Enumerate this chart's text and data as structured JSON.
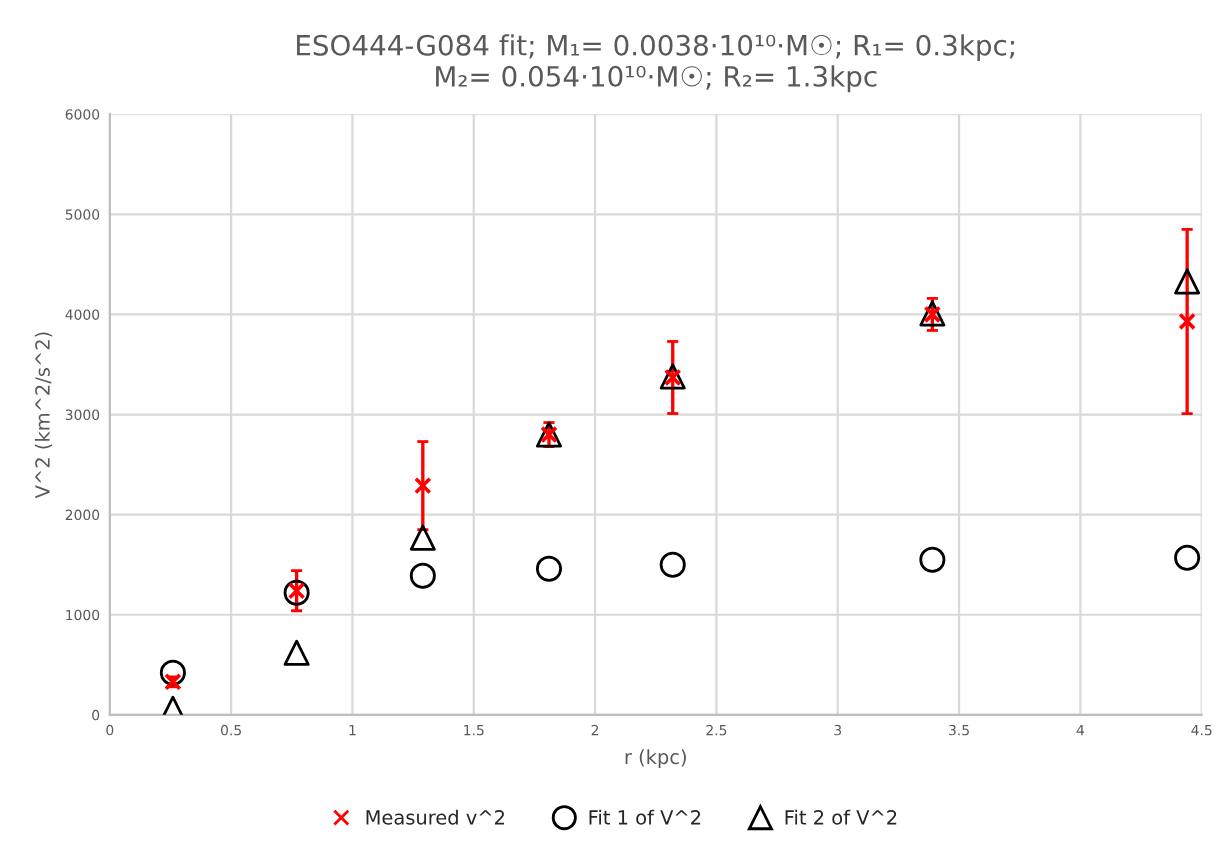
{
  "chart_data": {
    "type": "scatter",
    "title": "ESO444-G084 fit; M₁= 0.0038·10¹⁰·M☉; R₁= 0.3kpc;\nM₂= 0.054·10¹⁰·M☉; R₂= 1.3kpc",
    "xlabel": "r (kpc)",
    "ylabel": "V^2 (km^2/s^2)",
    "x": [
      0.26,
      0.77,
      1.29,
      1.81,
      2.32,
      3.39,
      4.44
    ],
    "series": [
      {
        "name": "Measured v^2",
        "color": "#ff0000",
        "marker": "cross",
        "values": [
          330,
          1240,
          2290,
          2800,
          3370,
          4000,
          3930
        ],
        "errors": [
          50,
          200,
          440,
          120,
          360,
          160,
          920
        ]
      },
      {
        "name": "Fit 1 of V^2",
        "color": "#000000",
        "marker": "circle",
        "values": [
          420,
          1220,
          1390,
          1460,
          1500,
          1550,
          1570
        ]
      },
      {
        "name": "Fit 2 of V^2",
        "color": "#000000",
        "marker": "triangle",
        "values": [
          60,
          620,
          1770,
          2800,
          3380,
          4010,
          4330
        ]
      }
    ],
    "xlim": [
      0,
      4.5
    ],
    "xticks": [
      0,
      0.5,
      1,
      1.5,
      2,
      2.5,
      3,
      3.5,
      4,
      4.5
    ],
    "ylim": [
      0,
      6000
    ],
    "yticks": [
      0,
      1000,
      2000,
      3000,
      4000,
      5000,
      6000
    ],
    "grid": true,
    "legend": "bottom"
  }
}
